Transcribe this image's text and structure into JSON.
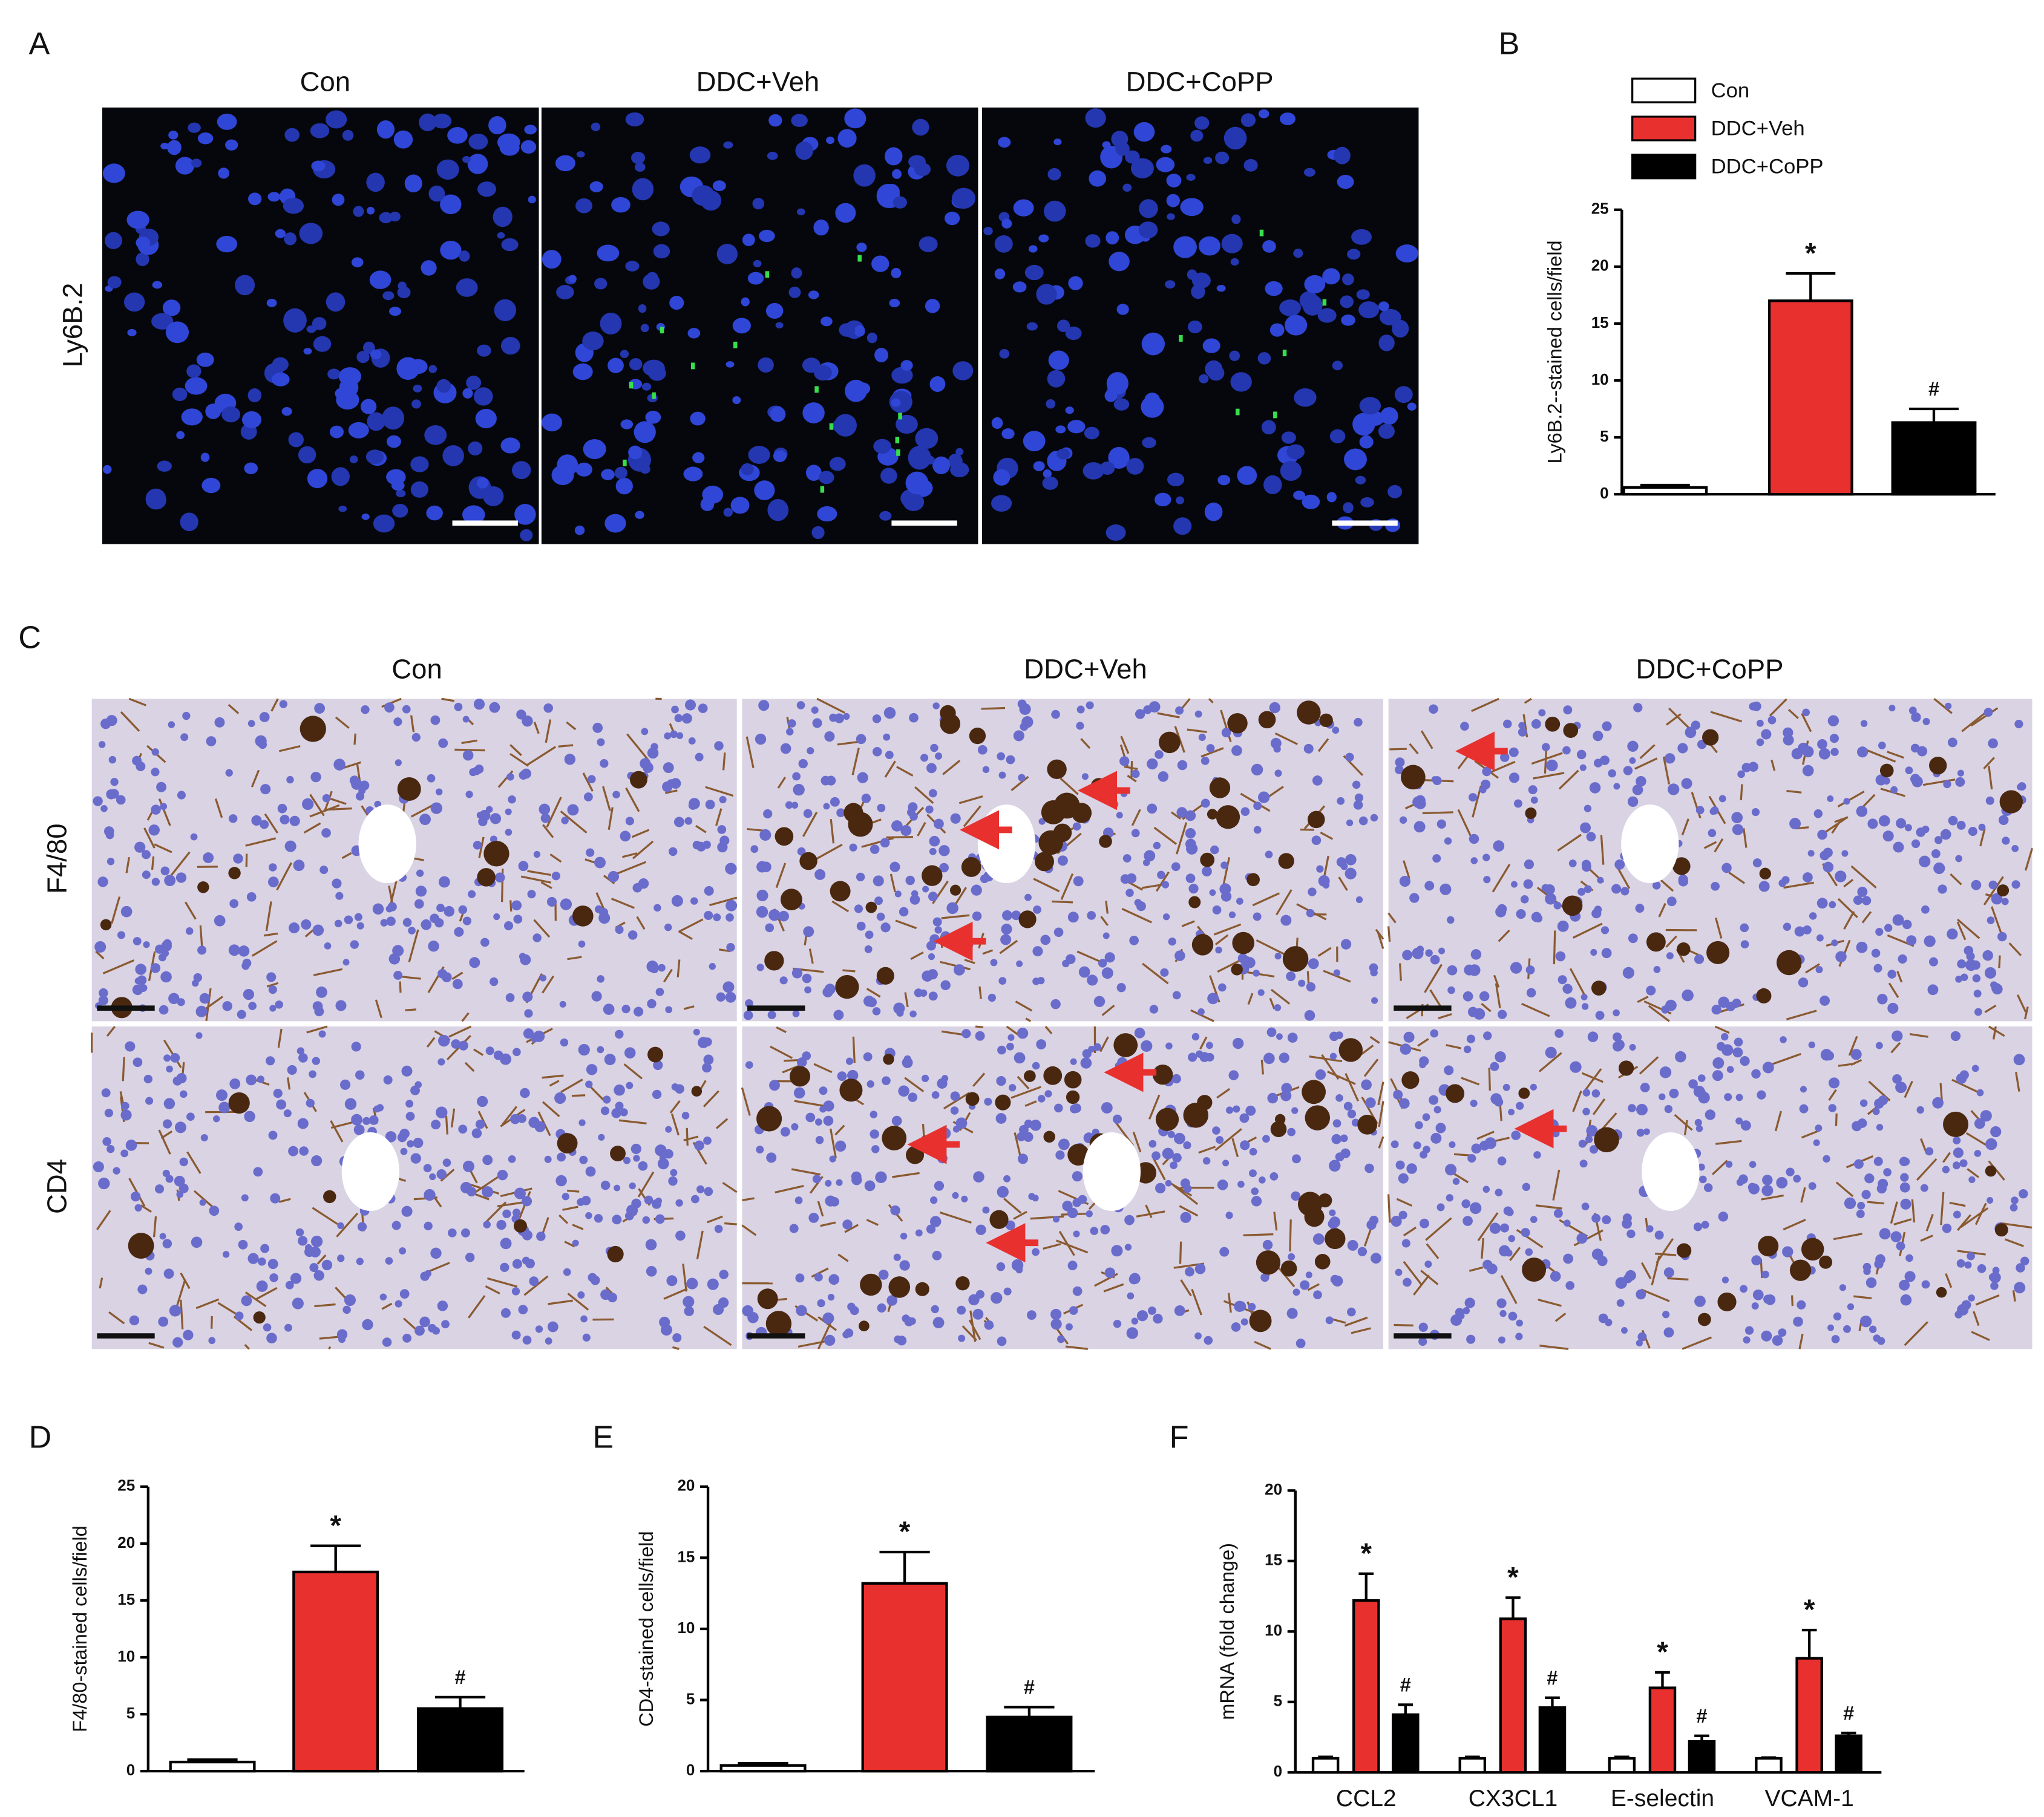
{
  "figure": {
    "panel_labels": [
      "A",
      "B",
      "C",
      "D",
      "E",
      "F"
    ],
    "a_columns": [
      "Con",
      "DDC+Veh",
      "DDC+CoPP"
    ],
    "a_row": "Ly6B.2",
    "c_columns": [
      "Con",
      "DDC+Veh",
      "DDC+CoPP"
    ],
    "c_rows": [
      "F4/80",
      "CD4"
    ]
  },
  "chart_data": [
    {
      "type": "bar",
      "ylabel": "Ly6B.2--stained cells/field",
      "categories": [
        null,
        null,
        null
      ],
      "values": [
        0.6,
        17,
        6.3
      ],
      "errors": [
        0.2,
        2.4,
        1.2
      ],
      "colors": [
        "#ffffff",
        "#e8312f",
        "#000000"
      ],
      "annotations": [
        null,
        "*",
        "#"
      ],
      "legend": [
        "Con",
        "DDC+Veh",
        "DDC+CoPP"
      ],
      "ylim": [
        0,
        25
      ],
      "yticks": [
        0,
        5,
        10,
        15,
        20,
        25
      ]
    },
    {
      "type": "bar",
      "ylabel": "F4/80-stained cells/field",
      "categories": [
        null,
        null,
        null
      ],
      "values": [
        0.8,
        17.5,
        5.5
      ],
      "errors": [
        0.2,
        2.3,
        1.0
      ],
      "colors": [
        "#ffffff",
        "#e8312f",
        "#000000"
      ],
      "annotations": [
        null,
        "*",
        "#"
      ],
      "ylim": [
        0,
        25
      ],
      "yticks": [
        0,
        5,
        10,
        15,
        20,
        25
      ]
    },
    {
      "type": "bar",
      "ylabel": "CD4-stained cells/field",
      "categories": [
        null,
        null,
        null
      ],
      "values": [
        0.4,
        13.2,
        3.8
      ],
      "errors": [
        0.15,
        2.2,
        0.7
      ],
      "colors": [
        "#ffffff",
        "#e8312f",
        "#000000"
      ],
      "annotations": [
        null,
        "*",
        "#"
      ],
      "ylim": [
        0,
        20
      ],
      "yticks": [
        0,
        5,
        10,
        15,
        20
      ]
    },
    {
      "type": "grouped_bar",
      "ylabel": "mRNA (fold change)",
      "categories": [
        "CCL2",
        "CX3CL1",
        "E-selectin",
        "VCAM-1"
      ],
      "series": [
        {
          "color": "#ffffff",
          "values": [
            1,
            1,
            1,
            1
          ],
          "errors": [
            0.1,
            0.1,
            0.1,
            0.05
          ],
          "annotations": [
            null,
            null,
            null,
            null
          ]
        },
        {
          "color": "#e8312f",
          "values": [
            12.2,
            10.9,
            6,
            8.1
          ],
          "errors": [
            1.9,
            1.5,
            1.1,
            2.0
          ],
          "annotations": [
            "*",
            "*",
            "*",
            "*"
          ]
        },
        {
          "color": "#000000",
          "values": [
            4.1,
            4.6,
            2.2,
            2.6
          ],
          "errors": [
            0.7,
            0.7,
            0.4,
            0.2
          ],
          "annotations": [
            "#",
            "#",
            "#",
            "#"
          ]
        }
      ],
      "ylim": [
        0,
        20
      ],
      "yticks": [
        0,
        5,
        10,
        15,
        20
      ]
    }
  ]
}
